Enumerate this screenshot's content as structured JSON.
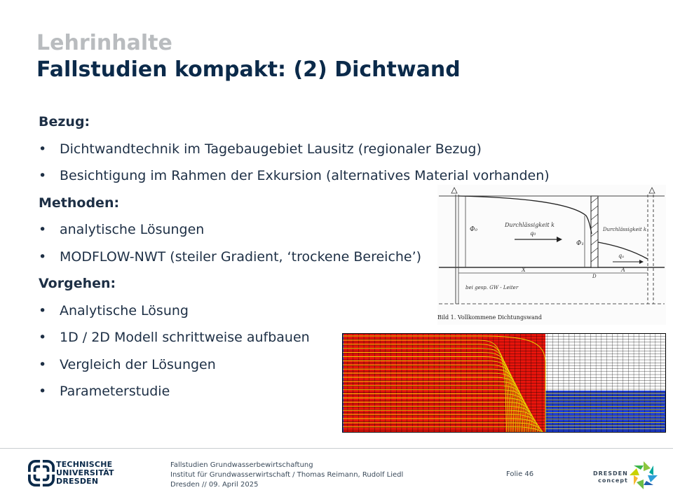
{
  "header": {
    "kicker": "Lehrinhalte",
    "title": "Fallstudien kompakt: (2) Dichtwand"
  },
  "content": {
    "bullet_char": "•",
    "sections": [
      {
        "heading": "Bezug:",
        "items": [
          "Dichtwandtechnik im Tagebaugebiet Lausitz (regionaler Bezug)",
          "Besichtigung im Rahmen der Exkursion (alternatives Material vorhanden)"
        ]
      },
      {
        "heading": "Methoden:",
        "items": [
          "analytische Lösungen",
          "MODFLOW-NWT (steiler Gradient, ‘trockene Bereiche’)"
        ]
      },
      {
        "heading": "Vorgehen:",
        "items": [
          "Analytische Lösung",
          "1D / 2D Modell schrittweise aufbauen",
          "Vergleich der Lösungen",
          "Parameterstudie"
        ]
      }
    ]
  },
  "figure1": {
    "label_k_left": "Durchlässigkeit k",
    "label_k_right": "Durchlässigkeit k",
    "label_q0": "q₀",
    "label_qa": "qₐ",
    "label_phi0": "Φ₀",
    "label_phi1": "Φ₁",
    "label_x": "X",
    "label_d": "D",
    "label_a": "A",
    "label_gw": "bei gesp. GW - Leiter",
    "caption": "Bild 1. Vollkommene Dichtungswand"
  },
  "footer": {
    "uni_line1": "TECHNISCHE",
    "uni_line2": "UNIVERSITÄT",
    "uni_line3": "DRESDEN",
    "course": "Fallstudien Grundwasserbewirtschaftung",
    "institute": "Institut für Grundwasserwirtschaft / Thomas Reimann, Rudolf Liedl",
    "date_line": "Dresden // 09. April 2025",
    "slide_label": "Folie 46",
    "partner_line1": "DRESDEN",
    "partner_line2": "concept"
  },
  "colors": {
    "title": "#0b2a4a",
    "kicker": "#b9bcbf",
    "model_red": "#e8140c",
    "model_blue": "#1f3fd8",
    "model_yellow": "#e8d400"
  }
}
